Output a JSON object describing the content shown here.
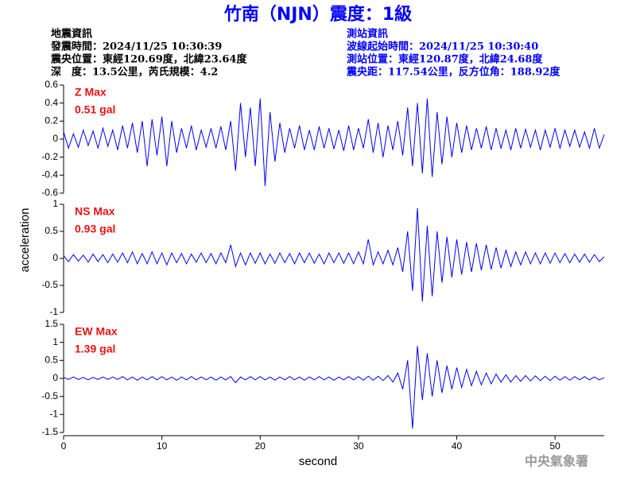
{
  "title": "竹南（NJN）震度：1級",
  "quake_info": {
    "heading": "地震資訊",
    "time": "發震時間：2024/11/25 10:30:39",
    "epicenter": "震央位置：東經120.69度，北緯23.64度",
    "depth": "深　度：13.5公里，芮氏規模：4.2"
  },
  "station_info": {
    "heading": "測站資訊",
    "start": "波線起始時間：2024/11/25 10:30:40",
    "location": "測站位置：東經120.87度，北緯24.68度",
    "distance": "震央距：117.54公里，反方位角：188.92度"
  },
  "ylabel": "acceleration",
  "xlabel": "second",
  "credit": "中央氣象署",
  "chart_data": [
    {
      "type": "line",
      "label": "Z Max",
      "max_label": "0.51 gal",
      "color": "#0000ff",
      "xlim": [
        0,
        55
      ],
      "ylim": [
        -0.6,
        0.6
      ],
      "yticks": [
        0.6,
        0.4,
        0.2,
        0,
        -0.2,
        -0.4,
        -0.6
      ],
      "x": [
        0,
        0.5,
        1,
        1.5,
        2,
        2.5,
        3,
        3.5,
        4,
        4.5,
        5,
        5.5,
        6,
        6.5,
        7,
        7.5,
        8,
        8.5,
        9,
        9.5,
        10,
        10.5,
        11,
        11.5,
        12,
        12.5,
        13,
        13.5,
        14,
        14.5,
        15,
        15.5,
        16,
        16.5,
        17,
        17.5,
        18,
        18.5,
        19,
        19.5,
        20,
        20.5,
        21,
        21.5,
        22,
        22.5,
        23,
        23.5,
        24,
        24.5,
        25,
        25.5,
        26,
        26.5,
        27,
        27.5,
        28,
        28.5,
        29,
        29.5,
        30,
        30.5,
        31,
        31.5,
        32,
        32.5,
        33,
        33.5,
        34,
        34.5,
        35,
        35.5,
        36,
        36.5,
        37,
        37.5,
        38,
        38.5,
        39,
        39.5,
        40,
        40.5,
        41,
        41.5,
        42,
        42.5,
        43,
        43.5,
        44,
        44.5,
        45,
        45.5,
        46,
        46.5,
        47,
        47.5,
        48,
        48.5,
        49,
        49.5,
        50,
        50.5,
        51,
        51.5,
        52,
        52.5,
        53,
        53.5,
        54,
        54.5,
        55
      ],
      "values": [
        0.08,
        -0.1,
        0.06,
        -0.09,
        0.1,
        -0.07,
        0.09,
        -0.1,
        0.12,
        -0.08,
        0.1,
        -0.12,
        0.15,
        -0.1,
        0.18,
        -0.15,
        0.2,
        -0.3,
        0.22,
        -0.18,
        0.25,
        -0.3,
        0.2,
        -0.15,
        0.12,
        -0.1,
        0.15,
        -0.12,
        0.1,
        -0.09,
        0.12,
        -0.1,
        0.14,
        -0.12,
        0.2,
        -0.35,
        0.4,
        -0.2,
        0.35,
        -0.3,
        0.45,
        -0.52,
        0.3,
        -0.25,
        0.18,
        -0.15,
        0.12,
        -0.1,
        0.15,
        -0.12,
        0.1,
        -0.12,
        0.14,
        -0.1,
        0.12,
        -0.11,
        0.1,
        -0.13,
        0.15,
        -0.12,
        0.12,
        -0.1,
        0.22,
        -0.15,
        0.18,
        -0.2,
        0.15,
        -0.12,
        0.2,
        -0.18,
        0.35,
        -0.3,
        0.4,
        -0.38,
        0.45,
        -0.42,
        0.3,
        -0.28,
        0.25,
        -0.2,
        0.18,
        -0.15,
        0.15,
        -0.12,
        0.12,
        -0.1,
        0.14,
        -0.12,
        0.12,
        -0.1,
        0.1,
        -0.12,
        0.12,
        -0.1,
        0.11,
        -0.09,
        0.1,
        -0.12,
        0.1,
        -0.09,
        0.12,
        -0.1,
        0.1,
        -0.08,
        0.1,
        -0.09,
        0.08,
        -0.1,
        0.12,
        -0.1,
        0.05
      ]
    },
    {
      "type": "line",
      "label": "NS Max",
      "max_label": "0.93 gal",
      "color": "#0000ff",
      "xlim": [
        0,
        55
      ],
      "ylim": [
        -1,
        1
      ],
      "yticks": [
        1,
        0.5,
        0,
        -0.5,
        -1
      ],
      "x": [
        0,
        0.5,
        1,
        1.5,
        2,
        2.5,
        3,
        3.5,
        4,
        4.5,
        5,
        5.5,
        6,
        6.5,
        7,
        7.5,
        8,
        8.5,
        9,
        9.5,
        10,
        10.5,
        11,
        11.5,
        12,
        12.5,
        13,
        13.5,
        14,
        14.5,
        15,
        15.5,
        16,
        16.5,
        17,
        17.5,
        18,
        18.5,
        19,
        19.5,
        20,
        20.5,
        21,
        21.5,
        22,
        22.5,
        23,
        23.5,
        24,
        24.5,
        25,
        25.5,
        26,
        26.5,
        27,
        27.5,
        28,
        28.5,
        29,
        29.5,
        30,
        30.5,
        31,
        31.5,
        32,
        32.5,
        33,
        33.5,
        34,
        34.5,
        35,
        35.5,
        36,
        36.5,
        37,
        37.5,
        38,
        38.5,
        39,
        39.5,
        40,
        40.5,
        41,
        41.5,
        42,
        42.5,
        43,
        43.5,
        44,
        44.5,
        45,
        45.5,
        46,
        46.5,
        47,
        47.5,
        48,
        48.5,
        49,
        49.5,
        50,
        50.5,
        51,
        51.5,
        52,
        52.5,
        53,
        53.5,
        54,
        54.5,
        55
      ],
      "values": [
        0.05,
        -0.06,
        0.07,
        -0.05,
        0.06,
        -0.07,
        0.08,
        -0.06,
        0.07,
        -0.08,
        0.08,
        -0.07,
        0.1,
        -0.08,
        0.12,
        -0.1,
        0.09,
        -0.1,
        0.12,
        -0.1,
        0.1,
        -0.12,
        0.1,
        -0.08,
        0.09,
        -0.1,
        0.08,
        -0.07,
        0.1,
        -0.08,
        0.09,
        -0.1,
        0.1,
        -0.08,
        0.25,
        -0.15,
        0.1,
        -0.12,
        0.1,
        -0.09,
        0.1,
        -0.1,
        0.08,
        -0.09,
        0.1,
        -0.08,
        0.09,
        -0.1,
        0.1,
        -0.08,
        0.1,
        -0.09,
        0.08,
        -0.1,
        0.1,
        -0.08,
        0.1,
        -0.09,
        0.1,
        -0.1,
        0.12,
        -0.1,
        0.35,
        -0.12,
        0.12,
        -0.1,
        0.15,
        -0.12,
        0.2,
        -0.25,
        0.5,
        -0.6,
        0.93,
        -0.8,
        0.6,
        -0.7,
        0.5,
        -0.45,
        0.4,
        -0.35,
        0.35,
        -0.3,
        0.3,
        -0.25,
        0.28,
        -0.22,
        0.25,
        -0.2,
        0.2,
        -0.18,
        0.15,
        -0.15,
        0.12,
        -0.12,
        0.12,
        -0.1,
        0.1,
        -0.1,
        0.1,
        -0.09,
        0.1,
        -0.08,
        0.09,
        -0.08,
        0.08,
        -0.07,
        0.08,
        -0.07,
        0.07,
        -0.06,
        0.03
      ]
    },
    {
      "type": "line",
      "label": "EW Max",
      "max_label": "1.39 gal",
      "color": "#0000ff",
      "xlim": [
        0,
        55
      ],
      "ylim": [
        -1.5,
        1.5
      ],
      "yticks": [
        1.5,
        1,
        0.5,
        0,
        -0.5,
        -1,
        -1.5
      ],
      "xticks": [
        0,
        10,
        20,
        30,
        40,
        50
      ],
      "x": [
        0,
        0.5,
        1,
        1.5,
        2,
        2.5,
        3,
        3.5,
        4,
        4.5,
        5,
        5.5,
        6,
        6.5,
        7,
        7.5,
        8,
        8.5,
        9,
        9.5,
        10,
        10.5,
        11,
        11.5,
        12,
        12.5,
        13,
        13.5,
        14,
        14.5,
        15,
        15.5,
        16,
        16.5,
        17,
        17.5,
        18,
        18.5,
        19,
        19.5,
        20,
        20.5,
        21,
        21.5,
        22,
        22.5,
        23,
        23.5,
        24,
        24.5,
        25,
        25.5,
        26,
        26.5,
        27,
        27.5,
        28,
        28.5,
        29,
        29.5,
        30,
        30.5,
        31,
        31.5,
        32,
        32.5,
        33,
        33.5,
        34,
        34.5,
        35,
        35.5,
        36,
        36.5,
        37,
        37.5,
        38,
        38.5,
        39,
        39.5,
        40,
        40.5,
        41,
        41.5,
        42,
        42.5,
        43,
        43.5,
        44,
        44.5,
        45,
        45.5,
        46,
        46.5,
        47,
        47.5,
        48,
        48.5,
        49,
        49.5,
        50,
        50.5,
        51,
        51.5,
        52,
        52.5,
        53,
        53.5,
        54,
        54.5,
        55
      ],
      "values": [
        0.03,
        -0.03,
        0.04,
        -0.03,
        0.03,
        -0.04,
        0.03,
        -0.03,
        0.04,
        -0.03,
        0.04,
        -0.03,
        0.05,
        -0.04,
        0.04,
        -0.05,
        0.04,
        -0.04,
        0.05,
        -0.04,
        0.05,
        -0.04,
        0.04,
        -0.05,
        0.04,
        -0.04,
        0.05,
        -0.04,
        0.04,
        -0.04,
        0.04,
        -0.05,
        0.04,
        -0.04,
        0.05,
        -0.12,
        0.04,
        -0.04,
        0.05,
        -0.04,
        0.05,
        -0.04,
        0.04,
        -0.05,
        0.04,
        -0.04,
        0.05,
        -0.04,
        0.04,
        -0.05,
        0.04,
        -0.04,
        0.05,
        -0.04,
        0.04,
        -0.05,
        0.04,
        -0.04,
        0.05,
        -0.04,
        0.05,
        -0.05,
        0.06,
        -0.05,
        0.06,
        -0.06,
        0.08,
        -0.1,
        0.15,
        -0.3,
        0.5,
        -1.39,
        0.9,
        -0.6,
        0.7,
        -0.5,
        0.5,
        -0.4,
        0.35,
        -0.3,
        0.3,
        -0.25,
        0.25,
        -0.2,
        0.2,
        -0.18,
        0.15,
        -0.15,
        0.12,
        -0.1,
        0.1,
        -0.1,
        0.08,
        -0.08,
        0.08,
        -0.07,
        0.07,
        -0.06,
        0.06,
        -0.06,
        0.06,
        -0.05,
        0.05,
        -0.05,
        0.05,
        -0.04,
        0.05,
        -0.04,
        0.04,
        -0.04,
        0.02
      ]
    }
  ]
}
